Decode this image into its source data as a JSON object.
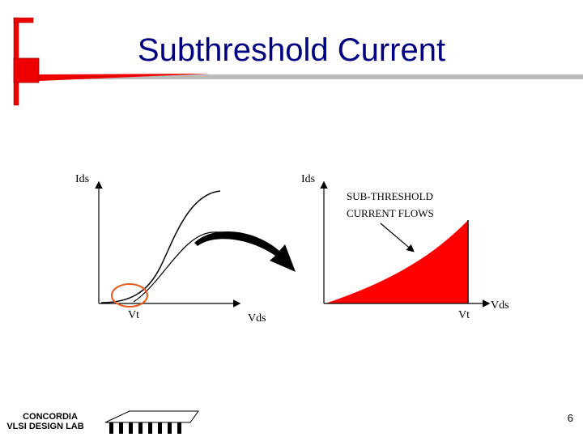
{
  "header": {
    "title": "Subthreshold Current"
  },
  "left_diagram": {
    "y_axis_label": "Ids",
    "x_axis_label": "Vds",
    "marker_label": "Vt"
  },
  "right_diagram": {
    "y_axis_label": "Ids",
    "x_axis_label": "Vds",
    "marker_label": "Vt",
    "annotation": [
      "SUB-THRESHOLD",
      "CURRENT FLOWS"
    ]
  },
  "footer": {
    "logo": [
      "CONCORDIA",
      "VLSI DESIGN LAB"
    ],
    "page_number": "6"
  }
}
